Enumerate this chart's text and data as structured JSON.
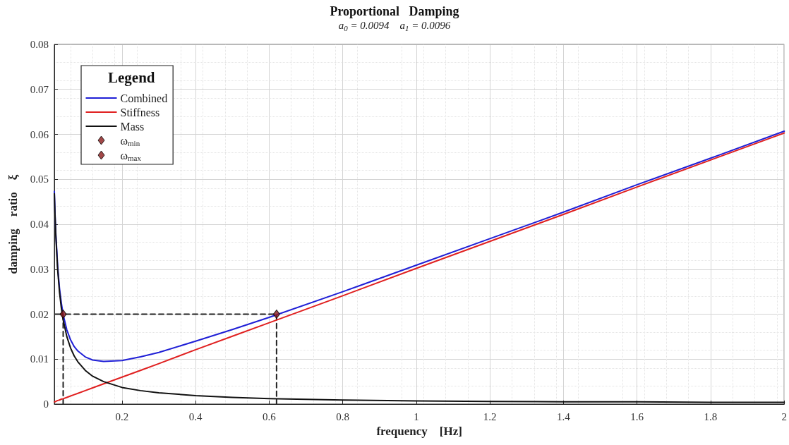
{
  "chart_data": {
    "type": "line",
    "title": "Proportional   Damping",
    "subtitle": "a$_{0}$ = 0.0094    a$_{1}$ = 0.0096",
    "xlabel": "frequency    [Hz]",
    "ylabel": "damping    ratio    ξ",
    "legend_title": "Legend",
    "legend": "top left",
    "grid": true,
    "xlim": [
      0.016,
      2
    ],
    "xticks": [
      0.2,
      0.4,
      0.6,
      0.8,
      1,
      1.2,
      1.4,
      1.6,
      1.8,
      2
    ],
    "ylim": [
      0,
      0.08
    ],
    "yticks": [
      0,
      0.01,
      0.02,
      0.03,
      0.04,
      0.05,
      0.06,
      0.07,
      0.08
    ],
    "x": [
      0.016,
      0.018,
      0.02,
      0.025,
      0.03,
      0.035,
      0.04,
      0.05,
      0.06,
      0.07,
      0.08,
      0.1,
      0.12,
      0.15,
      0.2,
      0.25,
      0.3,
      0.4,
      0.5,
      0.6,
      0.8,
      1.0,
      1.2,
      1.4,
      1.6,
      1.8,
      2.0
    ],
    "series": [
      {
        "name": "Combined",
        "color": "#1f1fd6",
        "marker": "none",
        "line_style": "solid",
        "values": [
          0.0473,
          0.0421,
          0.038,
          0.0307,
          0.0258,
          0.0225,
          0.0199,
          0.0165,
          0.0143,
          0.0128,
          0.0118,
          0.0105,
          0.0098,
          0.0095,
          0.0097,
          0.0105,
          0.0115,
          0.014,
          0.0166,
          0.0193,
          0.025,
          0.0309,
          0.0368,
          0.0427,
          0.0488,
          0.0547,
          0.0607
        ]
      },
      {
        "name": "Stiffness",
        "color": "#e02020",
        "marker": "none",
        "line_style": "solid",
        "values": [
          0.0005,
          0.0005,
          0.0006,
          0.0008,
          0.0009,
          0.0011,
          0.0012,
          0.0015,
          0.0018,
          0.0021,
          0.0024,
          0.003,
          0.0036,
          0.0045,
          0.006,
          0.0075,
          0.009,
          0.0121,
          0.0151,
          0.0181,
          0.0241,
          0.0302,
          0.0362,
          0.0422,
          0.0483,
          0.0543,
          0.0603
        ]
      },
      {
        "name": "Mass",
        "color": "#111111",
        "marker": "none",
        "line_style": "solid",
        "values": [
          0.0468,
          0.0416,
          0.0374,
          0.0299,
          0.0249,
          0.0214,
          0.0187,
          0.015,
          0.0125,
          0.0107,
          0.0094,
          0.0075,
          0.0062,
          0.005,
          0.0037,
          0.003,
          0.0025,
          0.0019,
          0.0015,
          0.0012,
          0.0009,
          0.0007,
          0.0006,
          0.0005,
          0.0005,
          0.0004,
          0.0004
        ]
      },
      {
        "color": "#222222",
        "marker": "none",
        "line_style": "dashed",
        "x": [
          0.04,
          0.04,
          0.016,
          0.62,
          0.62
        ],
        "values": [
          0,
          0.02,
          0.02,
          0.02,
          0
        ]
      },
      {
        "name": "ω$_{min}$",
        "type": "scatter",
        "color": "#8b1a1a",
        "marker": "diamond",
        "x": [
          0.04
        ],
        "values": [
          0.02
        ]
      },
      {
        "name": "ω$_{max}$",
        "type": "scatter",
        "color": "#8b1a1a",
        "marker": "diamond",
        "x": [
          0.62
        ],
        "values": [
          0.02
        ]
      }
    ]
  }
}
